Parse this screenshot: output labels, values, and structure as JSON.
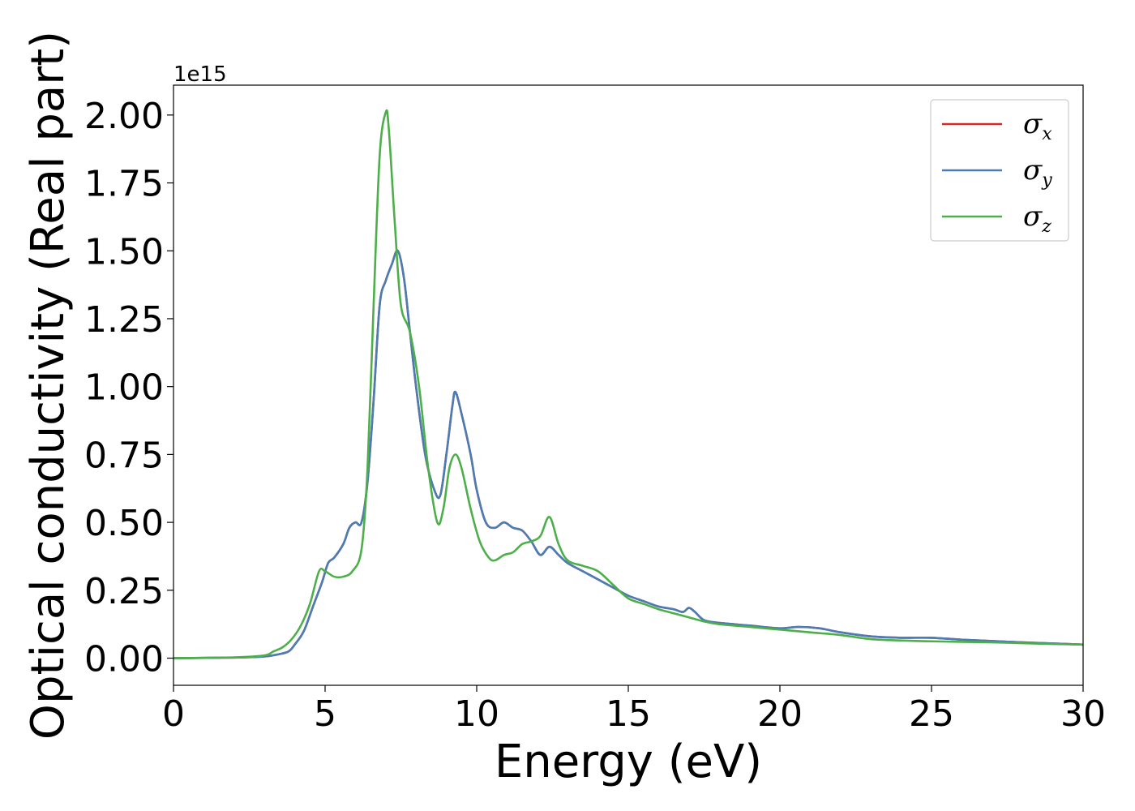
{
  "chart_data": {
    "type": "line",
    "xlabel": "Energy (eV)",
    "ylabel": "Optical conductivity (Real part)",
    "y_offset_label": "1e15",
    "xlim": [
      0,
      30
    ],
    "ylim": [
      -0.1,
      2.11
    ],
    "grid": false,
    "legend_position": "top-right",
    "x_ticks": [
      0,
      5,
      10,
      15,
      20,
      25,
      30
    ],
    "x_tick_labels": [
      "0",
      "5",
      "10",
      "15",
      "20",
      "25",
      "30"
    ],
    "y_ticks": [
      0.0,
      0.25,
      0.5,
      0.75,
      1.0,
      1.25,
      1.5,
      1.75,
      2.0
    ],
    "y_tick_labels": [
      "0.00",
      "0.25",
      "0.50",
      "0.75",
      "1.00",
      "1.25",
      "1.50",
      "1.75",
      "2.00"
    ],
    "series": [
      {
        "name": "σx",
        "symbol": "σ",
        "subscript": "x",
        "color": "#d62728",
        "x": [
          0,
          2,
          3,
          3.5,
          3.8,
          4.0,
          4.3,
          4.6,
          4.9,
          5.1,
          5.3,
          5.6,
          5.8,
          6.0,
          6.2,
          6.4,
          6.6,
          6.8,
          7.0,
          7.2,
          7.4,
          7.6,
          7.8,
          8.0,
          8.3,
          8.6,
          8.8,
          9.0,
          9.2,
          9.3,
          9.5,
          9.8,
          10.0,
          10.3,
          10.6,
          10.9,
          11.2,
          11.5,
          11.8,
          12.1,
          12.4,
          12.7,
          13.0,
          13.5,
          14.0,
          14.5,
          15.0,
          15.5,
          16.0,
          16.5,
          16.8,
          17.0,
          17.2,
          17.5,
          18.0,
          19.0,
          20.0,
          20.6,
          21.3,
          22.0,
          23.0,
          24.0,
          25.0,
          26.0,
          27.0,
          28.0,
          29.0,
          30.0
        ],
        "y": [
          0.0,
          0.002,
          0.006,
          0.015,
          0.025,
          0.05,
          0.1,
          0.19,
          0.28,
          0.35,
          0.37,
          0.42,
          0.48,
          0.5,
          0.5,
          0.65,
          0.95,
          1.3,
          1.39,
          1.45,
          1.5,
          1.4,
          1.2,
          1.0,
          0.75,
          0.62,
          0.6,
          0.75,
          0.93,
          0.98,
          0.9,
          0.75,
          0.62,
          0.5,
          0.48,
          0.5,
          0.48,
          0.47,
          0.43,
          0.38,
          0.41,
          0.38,
          0.35,
          0.32,
          0.29,
          0.26,
          0.23,
          0.21,
          0.19,
          0.18,
          0.17,
          0.185,
          0.17,
          0.14,
          0.13,
          0.12,
          0.11,
          0.115,
          0.11,
          0.095,
          0.08,
          0.075,
          0.075,
          0.068,
          0.063,
          0.058,
          0.054,
          0.05
        ]
      },
      {
        "name": "σy",
        "symbol": "σ",
        "subscript": "y",
        "color": "#4a7db5",
        "x": [
          0,
          2,
          3,
          3.5,
          3.8,
          4.0,
          4.3,
          4.6,
          4.9,
          5.1,
          5.3,
          5.6,
          5.8,
          6.0,
          6.2,
          6.4,
          6.6,
          6.8,
          7.0,
          7.2,
          7.4,
          7.6,
          7.8,
          8.0,
          8.3,
          8.6,
          8.8,
          9.0,
          9.2,
          9.3,
          9.5,
          9.8,
          10.0,
          10.3,
          10.6,
          10.9,
          11.2,
          11.5,
          11.8,
          12.1,
          12.4,
          12.7,
          13.0,
          13.5,
          14.0,
          14.5,
          15.0,
          15.5,
          16.0,
          16.5,
          16.8,
          17.0,
          17.2,
          17.5,
          18.0,
          19.0,
          20.0,
          20.6,
          21.3,
          22.0,
          23.0,
          24.0,
          25.0,
          26.0,
          27.0,
          28.0,
          29.0,
          30.0
        ],
        "y": [
          0.0,
          0.002,
          0.006,
          0.015,
          0.025,
          0.05,
          0.1,
          0.19,
          0.28,
          0.35,
          0.37,
          0.42,
          0.48,
          0.5,
          0.5,
          0.65,
          0.95,
          1.3,
          1.39,
          1.45,
          1.5,
          1.4,
          1.2,
          1.0,
          0.75,
          0.62,
          0.6,
          0.75,
          0.93,
          0.98,
          0.9,
          0.75,
          0.62,
          0.5,
          0.48,
          0.5,
          0.48,
          0.47,
          0.43,
          0.38,
          0.41,
          0.38,
          0.35,
          0.32,
          0.29,
          0.26,
          0.23,
          0.21,
          0.19,
          0.18,
          0.17,
          0.185,
          0.17,
          0.14,
          0.13,
          0.12,
          0.11,
          0.115,
          0.11,
          0.095,
          0.08,
          0.075,
          0.075,
          0.068,
          0.063,
          0.058,
          0.054,
          0.05
        ]
      },
      {
        "name": "σz",
        "symbol": "σ",
        "subscript": "z",
        "color": "#4daf4a",
        "x": [
          0,
          2,
          3,
          3.3,
          3.6,
          3.9,
          4.2,
          4.5,
          4.8,
          5.0,
          5.3,
          5.6,
          5.9,
          6.2,
          6.4,
          6.6,
          6.8,
          7.0,
          7.1,
          7.3,
          7.5,
          7.8,
          8.1,
          8.4,
          8.7,
          8.9,
          9.1,
          9.3,
          9.5,
          9.8,
          10.1,
          10.4,
          10.6,
          10.9,
          11.2,
          11.5,
          11.8,
          12.1,
          12.4,
          12.7,
          13.0,
          13.5,
          14.0,
          14.5,
          15.0,
          15.5,
          16.0,
          16.5,
          17.0,
          17.5,
          18.0,
          19.0,
          20.0,
          21.0,
          22.0,
          23.0,
          24.0,
          25.0,
          26.0,
          27.0,
          28.0,
          29.0,
          30.0
        ],
        "y": [
          0.0,
          0.003,
          0.01,
          0.025,
          0.04,
          0.07,
          0.12,
          0.2,
          0.32,
          0.32,
          0.3,
          0.3,
          0.32,
          0.4,
          0.7,
          1.3,
          1.85,
          2.01,
          1.95,
          1.6,
          1.3,
          1.2,
          1.0,
          0.7,
          0.5,
          0.55,
          0.7,
          0.75,
          0.7,
          0.55,
          0.43,
          0.37,
          0.36,
          0.38,
          0.39,
          0.42,
          0.43,
          0.45,
          0.52,
          0.42,
          0.36,
          0.34,
          0.32,
          0.27,
          0.22,
          0.2,
          0.18,
          0.165,
          0.15,
          0.135,
          0.125,
          0.115,
          0.105,
          0.095,
          0.085,
          0.07,
          0.065,
          0.062,
          0.06,
          0.058,
          0.055,
          0.052,
          0.05
        ]
      }
    ]
  }
}
